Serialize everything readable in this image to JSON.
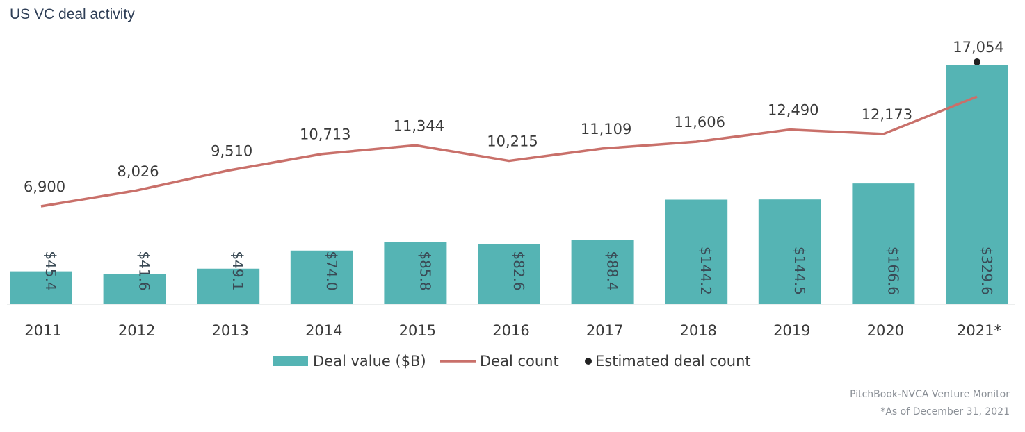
{
  "chart_data": {
    "type": "bar",
    "title": "US VC deal activity",
    "categories": [
      "2011",
      "2012",
      "2013",
      "2014",
      "2015",
      "2016",
      "2017",
      "2018",
      "2019",
      "2020",
      "2021*"
    ],
    "series": [
      {
        "name": "Deal value ($B)",
        "kind": "bar",
        "values": [
          45.4,
          41.6,
          49.1,
          74.0,
          85.8,
          82.6,
          88.4,
          144.2,
          144.5,
          166.6,
          329.6
        ],
        "labels": [
          "$45.4",
          "$41.6",
          "$49.1",
          "$74.0",
          "$85.8",
          "$82.6",
          "$88.4",
          "$144.2",
          "$144.5",
          "$166.6",
          "$329.6"
        ],
        "color": "#55b4b4"
      },
      {
        "name": "Deal count",
        "kind": "line",
        "values": [
          6900,
          8026,
          9510,
          10713,
          11344,
          10215,
          11109,
          11606,
          12490,
          12173,
          14900
        ],
        "labels": [
          "6,900",
          "8,026",
          "9,510",
          "10,713",
          "11,344",
          "10,215",
          "11,109",
          "11,606",
          "12,490",
          "12,173",
          ""
        ],
        "color": "#c9706a"
      },
      {
        "name": "Estimated deal count",
        "kind": "scatter",
        "category": "2021*",
        "value": 17054,
        "label": "17,054",
        "color": "#222222"
      }
    ],
    "legend_position": "bottom-center",
    "grid": false,
    "source": "PitchBook-NVCA Venture Monitor",
    "note": "*As of December 31, 2021"
  }
}
